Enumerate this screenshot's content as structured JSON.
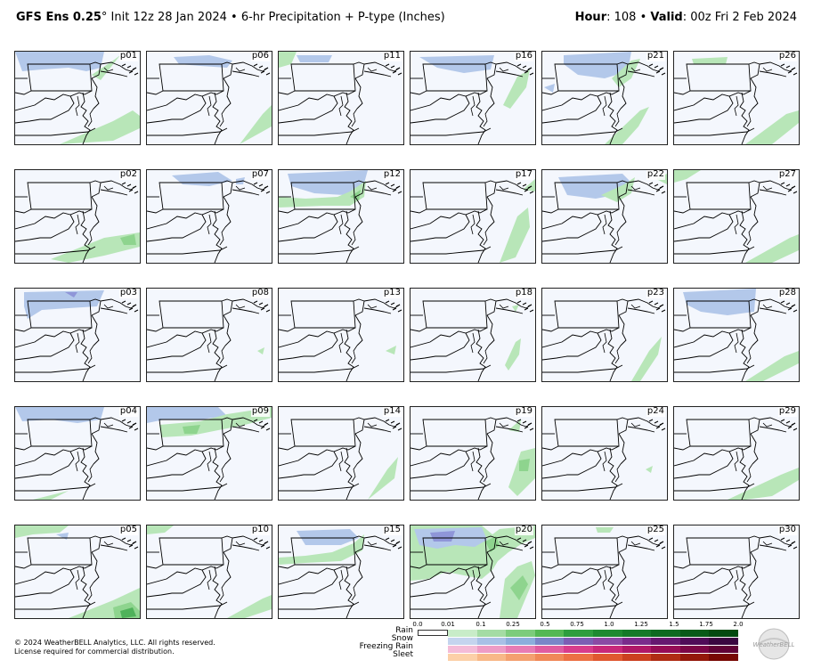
{
  "header": {
    "title_bold": "GFS Ens 0.25",
    "title_degree": "°",
    "title_rest": " Init 12z 28 Jan 2024 • 6-hr Precipitation + P-type (Inches)",
    "hour_label": "Hour",
    "hour_value": ": 108 • ",
    "valid_label": "Valid",
    "valid_value": ": 00z Fri 2 Feb 2024"
  },
  "panels": [
    "p01",
    "p06",
    "p11",
    "p16",
    "p21",
    "p26",
    "p02",
    "p07",
    "p12",
    "p17",
    "p22",
    "p27",
    "p03",
    "p08",
    "p13",
    "p18",
    "p23",
    "p28",
    "p04",
    "p09",
    "p14",
    "p19",
    "p24",
    "p29",
    "p05",
    "p10",
    "p15",
    "p20",
    "p25",
    "p30"
  ],
  "footer": {
    "copyright": "© 2024 WeatherBELL Analytics, LLC. All rights reserved.",
    "license": "License required for commercial distribution."
  },
  "legend": {
    "ticks": [
      "0.0",
      "0.01",
      "0.1",
      "0.25",
      "0.5",
      "0.75",
      "1.0",
      "1.25",
      "1.5",
      "1.75",
      "2.0"
    ],
    "types": [
      "Rain",
      "Snow",
      "Freezing Rain",
      "Sleet"
    ],
    "colors": {
      "rain": [
        "#c8ecc8",
        "#a4dca4",
        "#7ccc7c",
        "#54b854",
        "#2e9e3e",
        "#1e8a30",
        "#157a28",
        "#0e6a20",
        "#085a18",
        "#044a10"
      ],
      "snow": [
        "#c4d4ee",
        "#a8c0e6",
        "#8caedc",
        "#7a86c8",
        "#7c5eb4",
        "#8a4aa4",
        "#7a2c8c",
        "#661870",
        "#500c58",
        "#3a0640"
      ],
      "freezing": [
        "#f4bcd8",
        "#ee9cc6",
        "#e87cb4",
        "#e05ca0",
        "#d83c8c",
        "#c8287a",
        "#b01868",
        "#960c56",
        "#7c0646",
        "#600236"
      ],
      "sleet": [
        "#fcd0a8",
        "#f8b888",
        "#f4a070",
        "#f08858",
        "#ec7044",
        "#e05830",
        "#cc4020",
        "#b02c14",
        "#94180a",
        "#780804"
      ]
    }
  },
  "logo": {
    "text": "WeatherBELL"
  }
}
